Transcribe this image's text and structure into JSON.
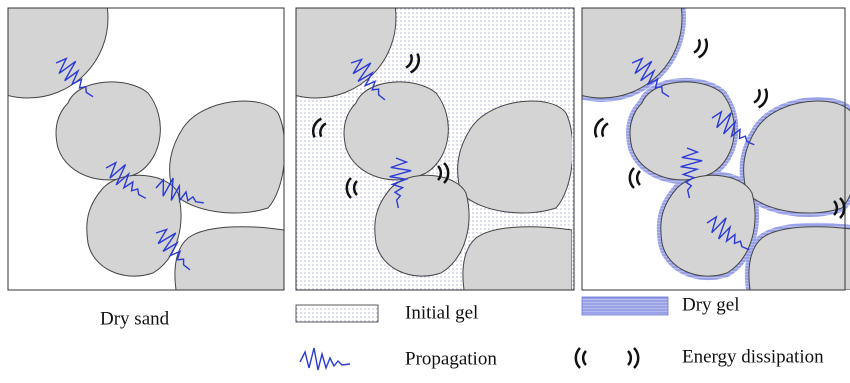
{
  "panels": [
    {
      "label": "Dry sand"
    }
  ],
  "legend": [
    {
      "label": "Initial gel"
    },
    {
      "label": "Dry gel"
    },
    {
      "label": "Propagation"
    },
    {
      "label": "Energy dissipation"
    }
  ]
}
